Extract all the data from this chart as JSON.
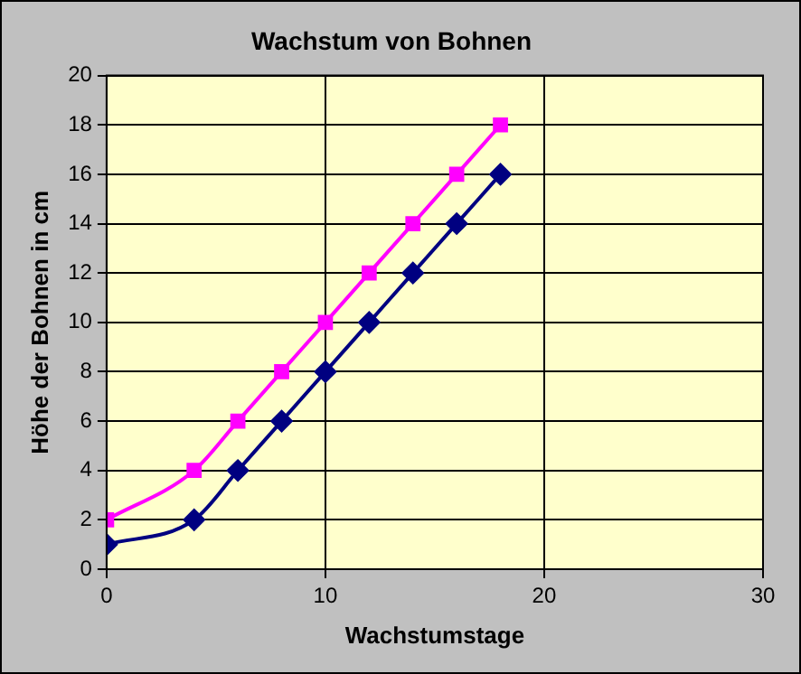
{
  "chart_data": {
    "type": "line",
    "title": "Wachstum von Bohnen",
    "xlabel": "Wachstumstage",
    "ylabel": "Höhe der Bohnen in cm",
    "x": [
      0,
      4,
      6,
      8,
      10,
      12,
      14,
      16,
      18
    ],
    "series": [
      {
        "color": "#000080",
        "marker": "diamond",
        "values": [
          1,
          2,
          4,
          6,
          8,
          10,
          12,
          14,
          16
        ]
      },
      {
        "color": "#ff00ff",
        "marker": "square",
        "values": [
          2,
          4,
          6,
          8,
          10,
          12,
          14,
          16,
          18
        ]
      }
    ],
    "xlim": [
      0,
      30
    ],
    "xticks": [
      0,
      10,
      20,
      30
    ],
    "ylim": [
      0,
      20
    ],
    "yticks": [
      0,
      2,
      4,
      6,
      8,
      10,
      12,
      14,
      16,
      18,
      20
    ],
    "grid": true,
    "legend": false
  }
}
